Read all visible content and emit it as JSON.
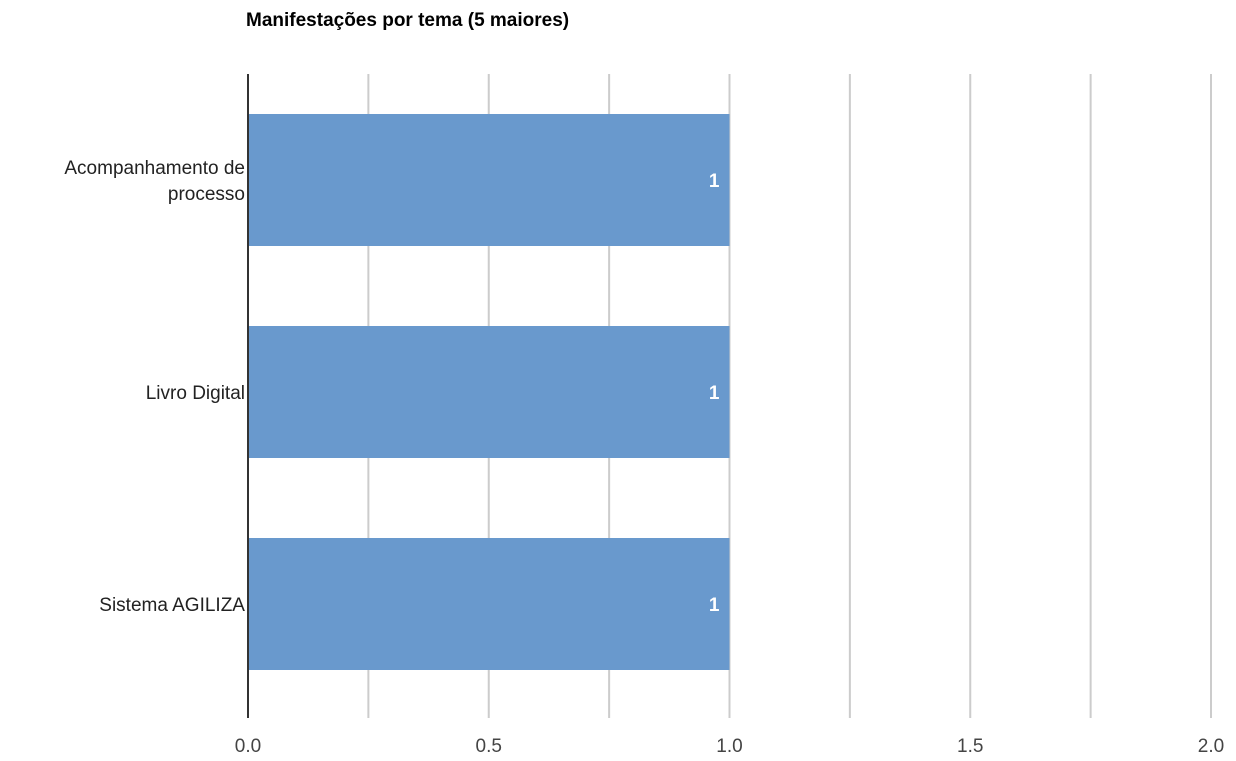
{
  "chart_data": {
    "type": "bar",
    "orientation": "horizontal",
    "title": "Manifestações por tema (5 maiores)",
    "categories": [
      "Acompanhamento de processo",
      "Livro Digital",
      "Sistema AGILIZA"
    ],
    "category_lines": [
      [
        "Acompanhamento de",
        "processo"
      ],
      [
        "Livro Digital"
      ],
      [
        "Sistema AGILIZA"
      ]
    ],
    "values": [
      1,
      1,
      1
    ],
    "data_labels": [
      "1",
      "1",
      "1"
    ],
    "xlim": [
      0,
      2
    ],
    "major_ticks": [
      0,
      0.5,
      1,
      1.5,
      2
    ],
    "tick_labels": [
      "0.0",
      "0.5",
      "1.0",
      "1.5",
      "2.0"
    ],
    "minor_gridlines": [
      0.25,
      0.75,
      1.25,
      1.75
    ],
    "grid": true,
    "legend": "none",
    "colors": {
      "bar": "#6999cd",
      "grid": "#cccccc",
      "axis": "#333333"
    }
  }
}
